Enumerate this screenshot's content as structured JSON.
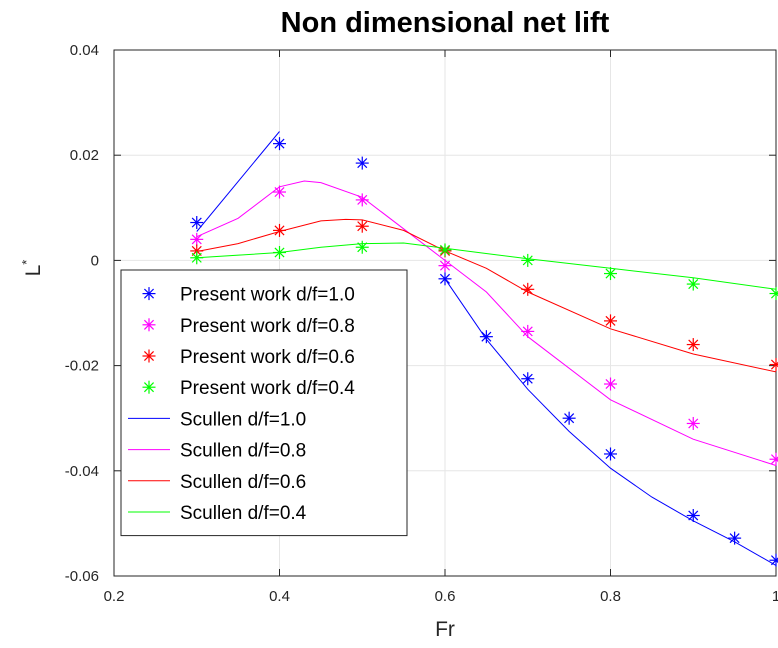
{
  "chart_data": {
    "type": "line",
    "title": "Non dimensional net lift",
    "xlabel": "Fr",
    "ylabel": "L",
    "ylabel_superscript": "*",
    "xlim": [
      0.2,
      1.0
    ],
    "ylim": [
      -0.06,
      0.04
    ],
    "xticks": [
      "0.2",
      "0.4",
      "0.6",
      "0.8",
      "1"
    ],
    "yticks": [
      "-0.06",
      "-0.04",
      "-0.02",
      "0",
      "0.02",
      "0.04"
    ],
    "grid": true,
    "legend_position": "bottom-left",
    "series": [
      {
        "name": "Present work d/f=1.0",
        "kind": "markers",
        "marker": "asterisk",
        "color": "#0000ff",
        "x": [
          0.3,
          0.4,
          0.5,
          0.6,
          0.65,
          0.7,
          0.75,
          0.8,
          0.9,
          0.95,
          1.0
        ],
        "y": [
          0.0072,
          0.0222,
          0.0185,
          -0.0035,
          -0.0145,
          -0.0225,
          -0.03,
          -0.0368,
          -0.0485,
          -0.0528,
          -0.057
        ]
      },
      {
        "name": "Present work d/f=0.8",
        "kind": "markers",
        "marker": "asterisk",
        "color": "#ff00ff",
        "x": [
          0.3,
          0.4,
          0.5,
          0.6,
          0.7,
          0.8,
          0.9,
          1.0
        ],
        "y": [
          0.004,
          0.013,
          0.0115,
          -0.001,
          -0.0135,
          -0.0235,
          -0.031,
          -0.0378
        ]
      },
      {
        "name": "Present work d/f=0.6",
        "kind": "markers",
        "marker": "asterisk",
        "color": "#ff0000",
        "x": [
          0.3,
          0.4,
          0.5,
          0.6,
          0.7,
          0.8,
          0.9,
          1.0
        ],
        "y": [
          0.0018,
          0.0057,
          0.0065,
          0.0018,
          -0.0055,
          -0.0115,
          -0.016,
          -0.0198
        ]
      },
      {
        "name": "Present work d/f=0.4",
        "kind": "markers",
        "marker": "asterisk",
        "color": "#00ff00",
        "x": [
          0.3,
          0.4,
          0.5,
          0.6,
          0.7,
          0.8,
          0.9,
          1.0
        ],
        "y": [
          0.0005,
          0.0015,
          0.0025,
          0.002,
          0.0,
          -0.0025,
          -0.0045,
          -0.0063
        ]
      },
      {
        "name": "Scullen d/f=1.0",
        "kind": "line",
        "color": "#0000ff",
        "x": [
          0.3,
          0.4
        ],
        "y": [
          0.0055,
          0.0245
        ]
      },
      {
        "name": "Scullen d/f=1.0",
        "kind": "line",
        "color": "#0000ff",
        "in_legend": false,
        "x": [
          0.6,
          0.65,
          0.7,
          0.75,
          0.8,
          0.85,
          0.9,
          0.95,
          1.0
        ],
        "y": [
          -0.0035,
          -0.015,
          -0.0245,
          -0.0325,
          -0.0395,
          -0.045,
          -0.0495,
          -0.0535,
          -0.058
        ]
      },
      {
        "name": "Scullen d/f=0.8",
        "kind": "line",
        "color": "#ff00ff",
        "x": [
          0.3,
          0.35,
          0.4,
          0.43,
          0.45,
          0.5,
          0.55,
          0.6,
          0.65,
          0.7,
          0.8,
          0.9,
          1.0
        ],
        "y": [
          0.0045,
          0.008,
          0.014,
          0.0151,
          0.0148,
          0.012,
          0.006,
          0.0,
          -0.006,
          -0.0145,
          -0.0265,
          -0.034,
          -0.039
        ]
      },
      {
        "name": "Scullen d/f=0.6",
        "kind": "line",
        "color": "#ff0000",
        "x": [
          0.3,
          0.35,
          0.4,
          0.45,
          0.48,
          0.5,
          0.55,
          0.6,
          0.65,
          0.7,
          0.8,
          0.9,
          1.0
        ],
        "y": [
          0.0017,
          0.0032,
          0.0055,
          0.0075,
          0.0078,
          0.0077,
          0.0057,
          0.0018,
          -0.0015,
          -0.006,
          -0.013,
          -0.0178,
          -0.0212
        ]
      },
      {
        "name": "Scullen d/f=0.4",
        "kind": "line",
        "color": "#00ff00",
        "x": [
          0.3,
          0.4,
          0.45,
          0.5,
          0.55,
          0.6,
          0.7,
          0.8,
          0.9,
          1.0
        ],
        "y": [
          0.0005,
          0.0015,
          0.0025,
          0.0032,
          0.0033,
          0.0023,
          0.0003,
          -0.0015,
          -0.0033,
          -0.0055
        ]
      }
    ]
  }
}
